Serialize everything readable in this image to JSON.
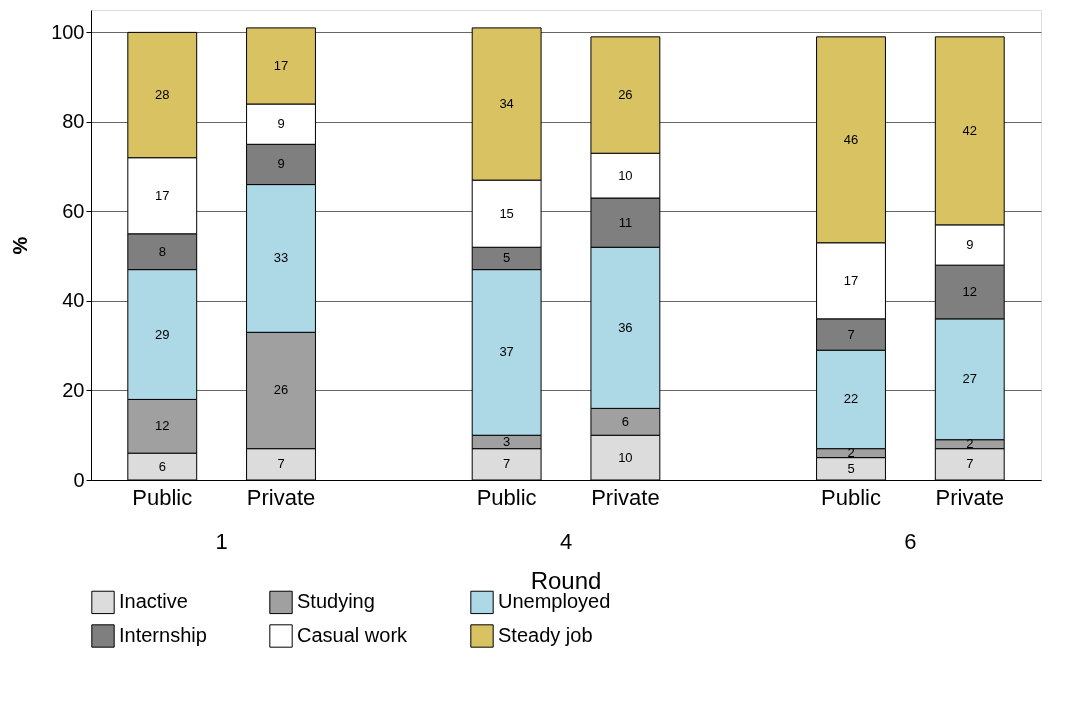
{
  "chart_data": {
    "type": "bar",
    "stacked": true,
    "data_labels": true,
    "xlabel": "Round",
    "ylabel": "%",
    "categories": [
      "Public",
      "Private",
      "Public",
      "Private",
      "Public",
      "Private"
    ],
    "annotations": [
      "1",
      "4",
      "6"
    ],
    "series": [
      {
        "name": "Inactive",
        "color": "#dcdcdc",
        "values": [
          6,
          7,
          7,
          10,
          5,
          7
        ]
      },
      {
        "name": "Studying",
        "color": "#a0a0a0",
        "values": [
          12,
          26,
          3,
          6,
          2,
          2
        ]
      },
      {
        "name": "Unemployed",
        "color": "#add8e6",
        "values": [
          29,
          33,
          37,
          36,
          22,
          27
        ]
      },
      {
        "name": "Internship",
        "color": "#7f7f7f",
        "values": [
          8,
          9,
          5,
          11,
          7,
          12
        ]
      },
      {
        "name": "Casual work",
        "color": "#ffffff",
        "values": [
          17,
          9,
          15,
          10,
          17,
          9
        ]
      },
      {
        "name": "Steady job",
        "color": "#d9c262",
        "values": [
          28,
          17,
          34,
          26,
          46,
          42
        ]
      }
    ],
    "ylim": [
      0,
      105
    ],
    "yticks": [
      0,
      20,
      40,
      60,
      80,
      100
    ],
    "grid": "y",
    "legend": "bottom"
  }
}
